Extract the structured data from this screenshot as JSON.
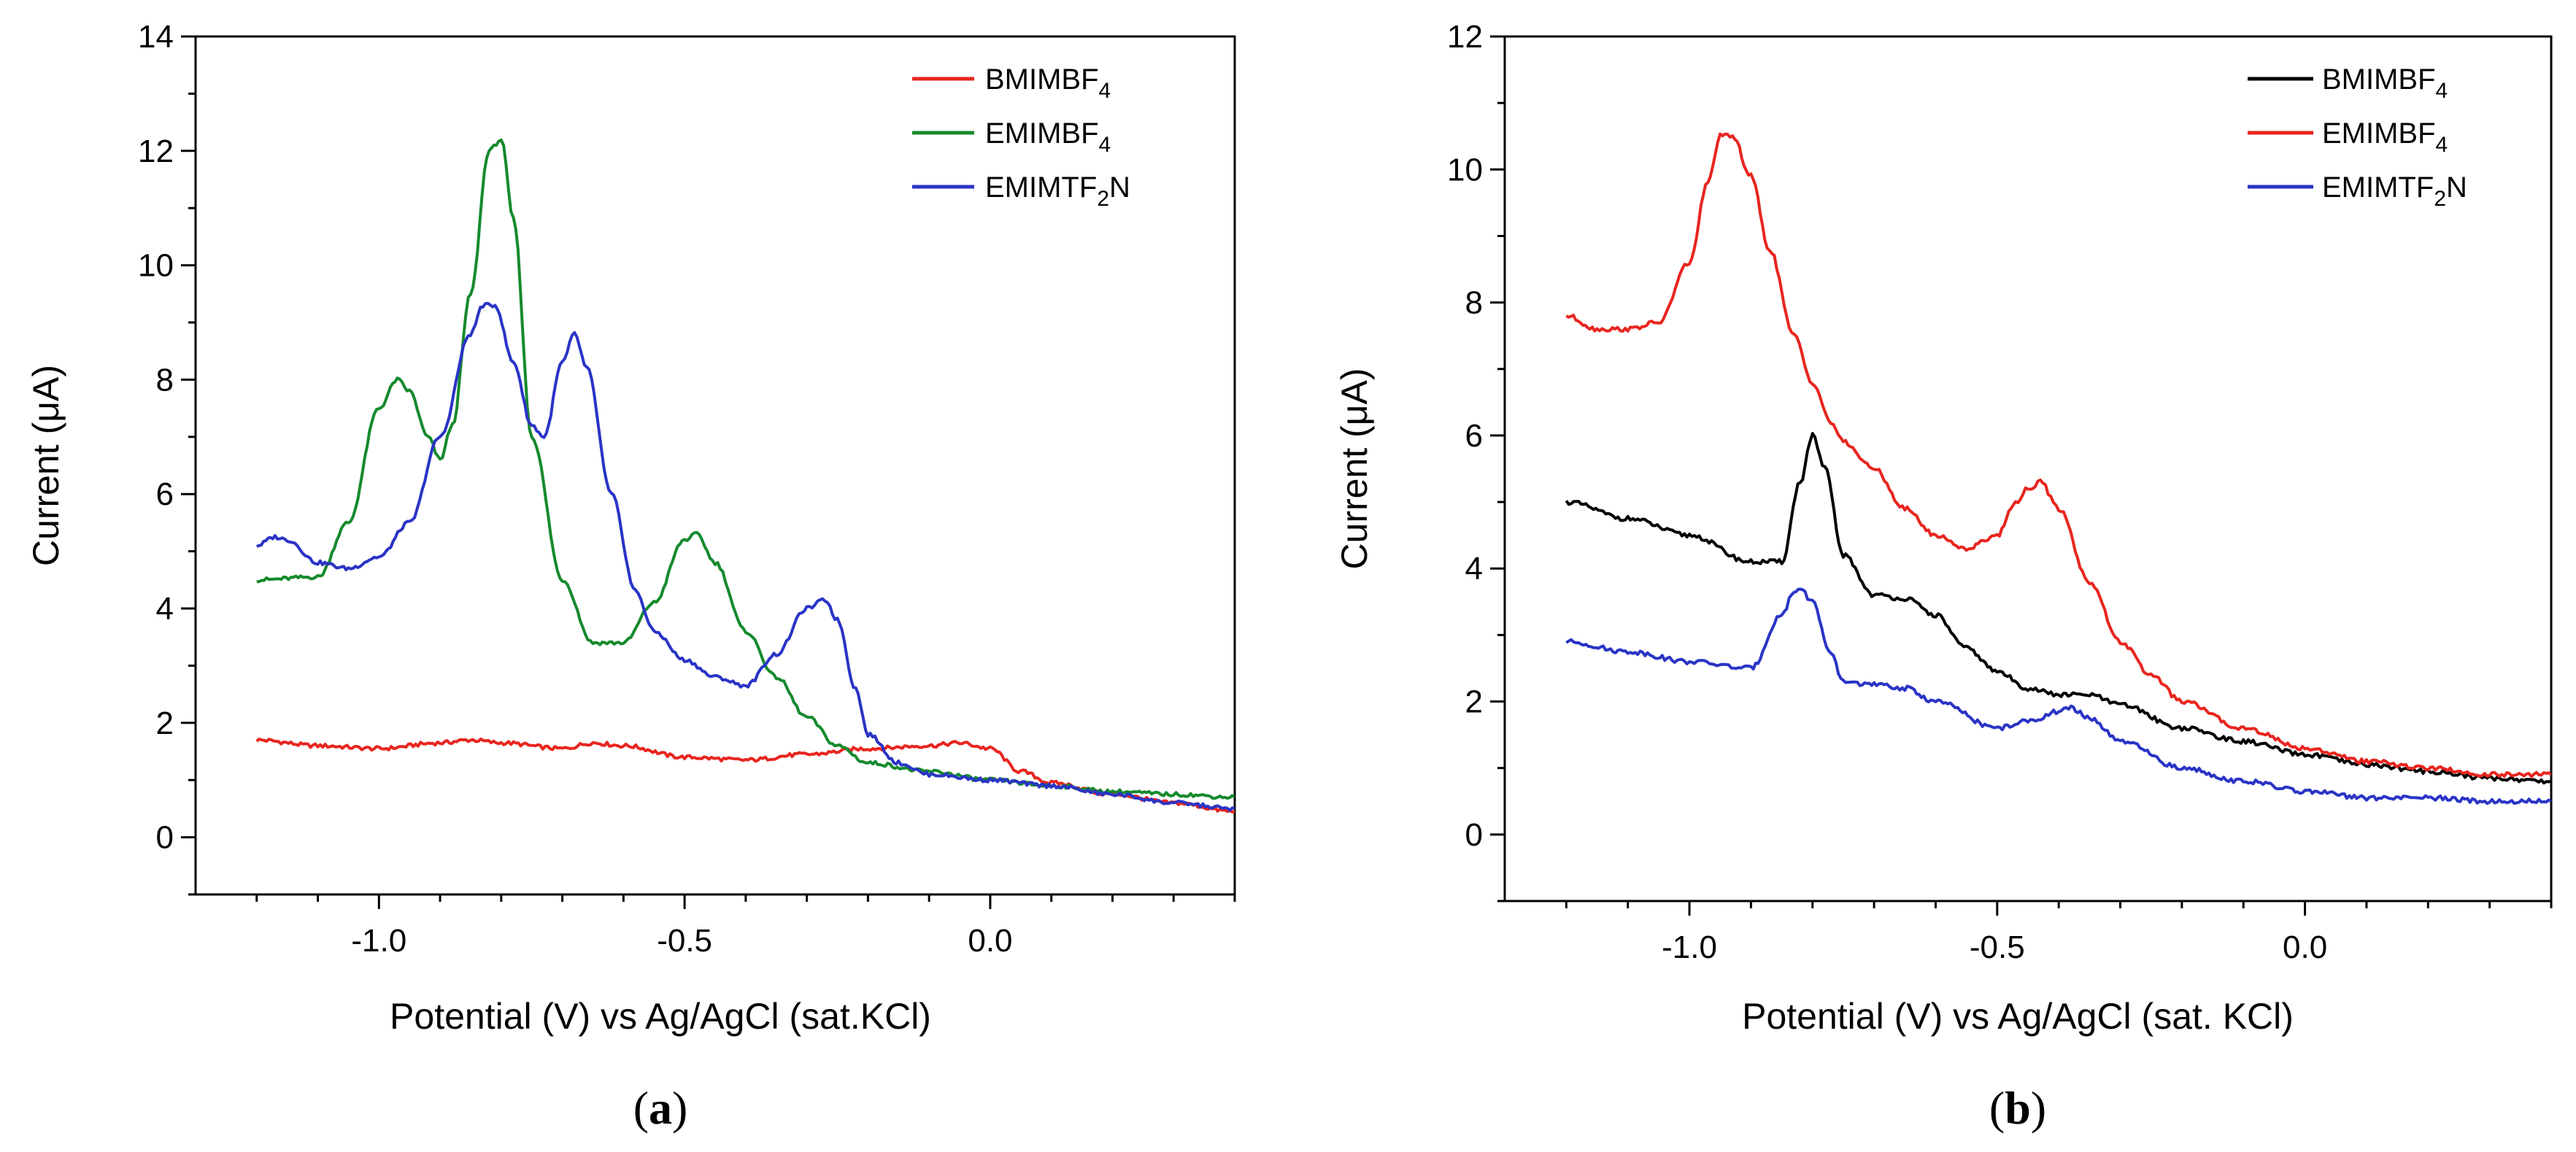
{
  "chart_data": [
    {
      "type": "line",
      "panel_label": "a",
      "xlabel": "Potential (V) vs Ag/AgCl (sat.KCl)",
      "ylabel": "Current (μA)",
      "xlim": [
        -1.3,
        0.4
      ],
      "ylim": [
        -1,
        14
      ],
      "xticks": [
        -1.0,
        -0.5,
        0.0
      ],
      "xtick_labels": [
        "-1.0",
        "-0.5",
        "0.0"
      ],
      "yticks": [
        0,
        2,
        4,
        6,
        8,
        10,
        12,
        14
      ],
      "ytick_labels": [
        "0",
        "2",
        "4",
        "6",
        "8",
        "10",
        "12",
        "14"
      ],
      "legend_position": "top-right",
      "series": [
        {
          "name": "BMIMBF",
          "subscript": "4",
          "color": "#e8251f",
          "x": [
            -1.2,
            -1.1,
            -1.0,
            -0.9,
            -0.85,
            -0.8,
            -0.7,
            -0.65,
            -0.6,
            -0.5,
            -0.4,
            -0.3,
            -0.2,
            -0.1,
            -0.05,
            0.0,
            0.05,
            0.1,
            0.2,
            0.3,
            0.4
          ],
          "y": [
            1.7,
            1.6,
            1.55,
            1.65,
            1.7,
            1.65,
            1.55,
            1.65,
            1.6,
            1.4,
            1.35,
            1.45,
            1.55,
            1.6,
            1.65,
            1.55,
            1.15,
            0.95,
            0.75,
            0.6,
            0.45
          ]
        },
        {
          "name": "EMIMBF",
          "subscript": "4",
          "color": "#168a2d",
          "x": [
            -1.2,
            -1.1,
            -1.05,
            -1.0,
            -0.97,
            -0.95,
            -0.92,
            -0.9,
            -0.88,
            -0.85,
            -0.82,
            -0.8,
            -0.78,
            -0.75,
            -0.7,
            -0.65,
            -0.6,
            -0.55,
            -0.5,
            -0.48,
            -0.45,
            -0.4,
            -0.35,
            -0.3,
            -0.25,
            -0.2,
            -0.1,
            0.0,
            0.1,
            0.2,
            0.3,
            0.4
          ],
          "y": [
            4.5,
            4.55,
            5.5,
            7.5,
            8.0,
            7.8,
            7.0,
            6.6,
            7.2,
            9.5,
            12.0,
            12.2,
            10.8,
            7.0,
            4.5,
            3.4,
            3.4,
            4.1,
            5.2,
            5.3,
            4.8,
            3.6,
            2.8,
            2.1,
            1.6,
            1.3,
            1.15,
            1.0,
            0.9,
            0.8,
            0.75,
            0.7
          ]
        },
        {
          "name": "EMIMTF",
          "subscript": "2",
          "suffix": "N",
          "color": "#2a34c6",
          "x": [
            -1.2,
            -1.17,
            -1.15,
            -1.1,
            -1.05,
            -1.0,
            -0.95,
            -0.9,
            -0.85,
            -0.83,
            -0.81,
            -0.78,
            -0.75,
            -0.73,
            -0.7,
            -0.68,
            -0.66,
            -0.62,
            -0.58,
            -0.55,
            -0.5,
            -0.45,
            -0.4,
            -0.35,
            -0.3,
            -0.27,
            -0.25,
            -0.22,
            -0.2,
            -0.15,
            -0.1,
            0.0,
            0.1,
            0.2,
            0.3,
            0.4
          ],
          "y": [
            5.1,
            5.25,
            5.2,
            4.8,
            4.7,
            4.9,
            5.5,
            7.0,
            8.8,
            9.3,
            9.3,
            8.3,
            7.2,
            7.0,
            8.3,
            8.8,
            8.2,
            6.0,
            4.3,
            3.6,
            3.1,
            2.8,
            2.65,
            3.2,
            4.0,
            4.15,
            3.8,
            2.6,
            1.8,
            1.3,
            1.1,
            1.0,
            0.9,
            0.75,
            0.6,
            0.5
          ]
        }
      ]
    },
    {
      "type": "line",
      "panel_label": "b",
      "xlabel": "Potential (V) vs Ag/AgCl (sat. KCl)",
      "ylabel": "Current (μA)",
      "xlim": [
        -1.3,
        0.4
      ],
      "ylim": [
        -1,
        12
      ],
      "xticks": [
        -1.0,
        -0.5,
        0.0
      ],
      "xtick_labels": [
        "-1.0",
        "-0.5",
        "0.0"
      ],
      "yticks": [
        0,
        2,
        4,
        6,
        8,
        10,
        12
      ],
      "ytick_labels": [
        "0",
        "2",
        "4",
        "6",
        "8",
        "10",
        "12"
      ],
      "legend_position": "top-right",
      "series": [
        {
          "name": "BMIMBF",
          "subscript": "4",
          "color": "#000000",
          "x": [
            -1.2,
            -1.1,
            -1.0,
            -0.9,
            -0.85,
            -0.82,
            -0.8,
            -0.78,
            -0.75,
            -0.7,
            -0.65,
            -0.6,
            -0.55,
            -0.5,
            -0.45,
            -0.4,
            -0.35,
            -0.3,
            -0.2,
            -0.1,
            0.0,
            0.1,
            0.2,
            0.3,
            0.4
          ],
          "y": [
            5.0,
            4.75,
            4.5,
            4.1,
            4.1,
            5.3,
            6.0,
            5.5,
            4.2,
            3.6,
            3.55,
            3.3,
            2.8,
            2.45,
            2.2,
            2.1,
            2.1,
            1.95,
            1.6,
            1.4,
            1.2,
            1.05,
            0.95,
            0.85,
            0.8
          ]
        },
        {
          "name": "EMIMBF",
          "subscript": "4",
          "color": "#e8251f",
          "x": [
            -1.2,
            -1.15,
            -1.1,
            -1.05,
            -1.0,
            -0.97,
            -0.95,
            -0.93,
            -0.9,
            -0.87,
            -0.83,
            -0.8,
            -0.77,
            -0.75,
            -0.7,
            -0.65,
            -0.6,
            -0.55,
            -0.5,
            -0.47,
            -0.45,
            -0.43,
            -0.4,
            -0.35,
            -0.3,
            -0.25,
            -0.2,
            -0.1,
            0.0,
            0.1,
            0.2,
            0.3,
            0.4
          ],
          "y": [
            7.8,
            7.6,
            7.6,
            7.7,
            8.6,
            9.8,
            10.5,
            10.5,
            9.9,
            8.8,
            7.5,
            6.8,
            6.2,
            5.9,
            5.5,
            4.9,
            4.5,
            4.3,
            4.5,
            5.0,
            5.2,
            5.3,
            4.9,
            3.8,
            2.9,
            2.4,
            2.0,
            1.6,
            1.3,
            1.1,
            1.0,
            0.9,
            0.9
          ]
        },
        {
          "name": "EMIMTF",
          "subscript": "2",
          "suffix": "N",
          "color": "#2a34c6",
          "x": [
            -1.2,
            -1.1,
            -1.0,
            -0.9,
            -0.85,
            -0.83,
            -0.82,
            -0.8,
            -0.77,
            -0.75,
            -0.7,
            -0.65,
            -0.6,
            -0.5,
            -0.45,
            -0.4,
            -0.38,
            -0.35,
            -0.3,
            -0.2,
            -0.1,
            0.0,
            0.1,
            0.2,
            0.3,
            0.4
          ],
          "y": [
            2.9,
            2.75,
            2.6,
            2.5,
            3.3,
            3.65,
            3.7,
            3.5,
            2.7,
            2.3,
            2.25,
            2.2,
            2.0,
            1.6,
            1.7,
            1.85,
            1.9,
            1.75,
            1.4,
            1.0,
            0.8,
            0.65,
            0.55,
            0.55,
            0.5,
            0.5
          ]
        }
      ]
    }
  ]
}
